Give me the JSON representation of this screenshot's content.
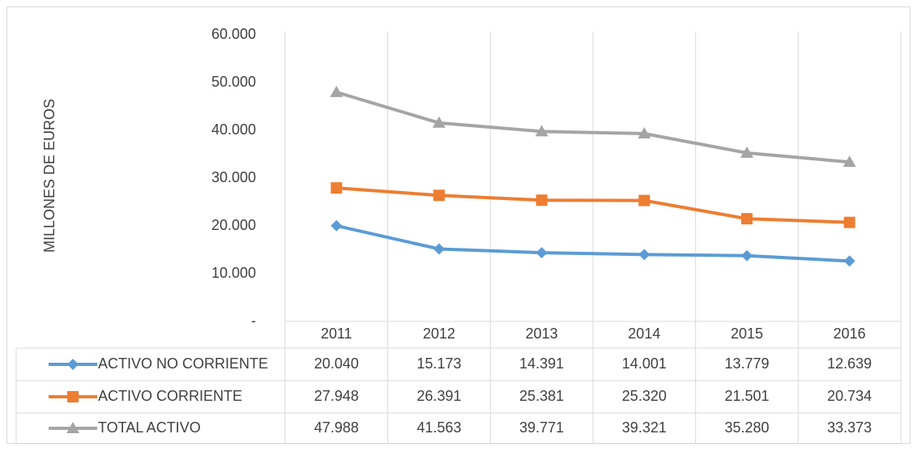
{
  "chart_data": {
    "type": "line",
    "y_label": "MILLONES DE EUROS",
    "categories": [
      "2011",
      "2012",
      "2013",
      "2014",
      "2015",
      "2016"
    ],
    "series": [
      {
        "name": "ACTIVO NO CORRIENTE",
        "color": "#5b9bd5",
        "marker": "diamond",
        "values": [
          20040,
          15173,
          14391,
          14001,
          13779,
          12639
        ],
        "value_labels": [
          "20.040",
          "15.173",
          "14.391",
          "14.001",
          "13.779",
          "12.639"
        ]
      },
      {
        "name": "ACTIVO CORRIENTE",
        "color": "#ed7d31",
        "marker": "square",
        "values": [
          27948,
          26391,
          25381,
          25320,
          21501,
          20734
        ],
        "value_labels": [
          "27.948",
          "26.391",
          "25.381",
          "25.320",
          "21.501",
          "20.734"
        ]
      },
      {
        "name": "TOTAL ACTIVO",
        "color": "#a5a5a5",
        "marker": "triangle",
        "values": [
          47988,
          41563,
          39771,
          39321,
          35280,
          33373
        ],
        "value_labels": [
          "47.988",
          "41.563",
          "39.771",
          "39.321",
          "35.280",
          "33.373"
        ]
      }
    ],
    "ylim": [
      0,
      60000
    ],
    "yticks": [
      {
        "value": 0,
        "label": "-"
      },
      {
        "value": 10000,
        "label": "10.000"
      },
      {
        "value": 20000,
        "label": "20.000"
      },
      {
        "value": 30000,
        "label": "30.000"
      },
      {
        "value": 40000,
        "label": "40.000"
      },
      {
        "value": 50000,
        "label": "50.000"
      },
      {
        "value": 60000,
        "label": "60.000"
      }
    ]
  }
}
